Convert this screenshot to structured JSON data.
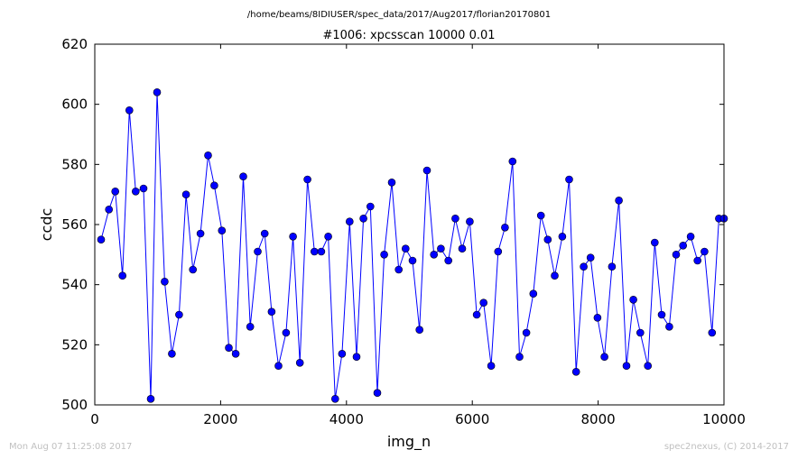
{
  "chart_data": {
    "type": "line",
    "suptitle": "/home/beams/8IDIUSER/spec_data/2017/Aug2017/florian20170801",
    "title": "#1006: xpcsscan 10000 0.01",
    "xlabel": "img_n",
    "ylabel": "ccdc",
    "xlim": [
      0,
      10000
    ],
    "ylim": [
      500,
      620
    ],
    "xticks": [
      0,
      2000,
      4000,
      6000,
      8000,
      10000
    ],
    "yticks": [
      500,
      520,
      540,
      560,
      580,
      600,
      620
    ],
    "grid": false,
    "series_color": "#0000ff",
    "series": [
      {
        "x": [
          100,
          225,
          325,
          440,
          550,
          650,
          775,
          890,
          990,
          1110,
          1225,
          1340,
          1450,
          1560,
          1680,
          1800,
          1900,
          2020,
          2130,
          2240,
          2360,
          2470,
          2590,
          2700,
          2810,
          2920,
          3040,
          3150,
          3260,
          3380,
          3490,
          3600,
          3710,
          3820,
          3930,
          4050,
          4160,
          4270,
          4380,
          4490,
          4600,
          4720,
          4830,
          4940,
          5050,
          5160,
          5280,
          5390,
          5500,
          5620,
          5730,
          5840,
          5960,
          6070,
          6180,
          6300,
          6410,
          6520,
          6640,
          6750,
          6860,
          6970,
          7090,
          7200,
          7310,
          7430,
          7540,
          7650,
          7770,
          7880,
          7990,
          8100,
          8220,
          8330,
          8450,
          8560,
          8670,
          8790,
          8900,
          9010,
          9130,
          9240,
          9350,
          9470,
          9580,
          9690,
          9810,
          9920,
          10000
        ],
        "values": [
          555,
          565,
          571,
          543,
          598,
          571,
          572,
          502,
          604,
          541,
          517,
          530,
          570,
          545,
          557,
          583,
          573,
          558,
          519,
          517,
          576,
          526,
          551,
          557,
          531,
          513,
          524,
          556,
          514,
          575,
          551,
          551,
          556,
          502,
          517,
          561,
          516,
          562,
          566,
          504,
          550,
          574,
          545,
          552,
          548,
          525,
          578,
          550,
          552,
          548,
          562,
          552,
          561,
          530,
          534,
          513,
          551,
          559,
          581,
          516,
          524,
          537,
          563,
          555,
          543,
          556,
          575,
          511,
          546,
          549,
          529,
          516,
          546,
          568,
          513,
          535,
          524,
          513,
          554,
          530,
          526,
          550,
          553,
          556,
          548,
          551,
          524,
          562,
          562
        ]
      }
    ]
  },
  "footer": {
    "timestamp": "Mon Aug 07 11:25:08 2017",
    "credit": "spec2nexus, (C) 2014-2017"
  }
}
